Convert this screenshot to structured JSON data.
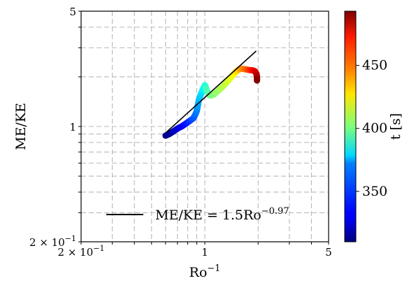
{
  "chart_data": {
    "type": "scatter",
    "xscale": "log",
    "yscale": "log",
    "xlabel": "Ro",
    "xlabel_sup": "−1",
    "ylabel": "ME/KE",
    "xlim": [
      0.2,
      5
    ],
    "ylim": [
      0.2,
      5
    ],
    "grid": true,
    "legend_position": "lower-center",
    "x_ticks": [
      {
        "value": 0.2,
        "label": "2 × 10",
        "sup": "−1"
      },
      {
        "value": 1,
        "label": "1",
        "sup": ""
      },
      {
        "value": 5,
        "label": "5",
        "sup": ""
      }
    ],
    "y_ticks": [
      {
        "value": 0.2,
        "label": "2 × 10",
        "sup": "−1"
      },
      {
        "value": 1,
        "label": "1",
        "sup": ""
      },
      {
        "value": 5,
        "label": "5",
        "sup": ""
      }
    ],
    "fit": {
      "coefficient": 1.5,
      "exponent": -0.97,
      "x_range": [
        0.6,
        1.95
      ],
      "legend_label": "ME/KE = 1.5Ro",
      "legend_sup": "−0.97",
      "color": "#000000"
    },
    "colorbar": {
      "label": "t [s]",
      "range": [
        310,
        493
      ],
      "ticks": [
        350,
        400,
        450
      ],
      "colormap": "jet"
    },
    "points": [
      {
        "x": 0.6,
        "y": 0.88,
        "t": 311
      },
      {
        "x": 0.63,
        "y": 0.9,
        "t": 314
      },
      {
        "x": 0.66,
        "y": 0.93,
        "t": 318
      },
      {
        "x": 0.68,
        "y": 0.95,
        "t": 322
      },
      {
        "x": 0.71,
        "y": 0.98,
        "t": 326
      },
      {
        "x": 0.74,
        "y": 1.0,
        "t": 330
      },
      {
        "x": 0.77,
        "y": 1.03,
        "t": 334
      },
      {
        "x": 0.8,
        "y": 1.06,
        "t": 338
      },
      {
        "x": 0.83,
        "y": 1.09,
        "t": 342
      },
      {
        "x": 0.86,
        "y": 1.12,
        "t": 347
      },
      {
        "x": 0.88,
        "y": 1.17,
        "t": 351
      },
      {
        "x": 0.9,
        "y": 1.24,
        "t": 355
      },
      {
        "x": 0.91,
        "y": 1.32,
        "t": 359
      },
      {
        "x": 0.92,
        "y": 1.4,
        "t": 363
      },
      {
        "x": 0.93,
        "y": 1.48,
        "t": 367
      },
      {
        "x": 0.95,
        "y": 1.57,
        "t": 371
      },
      {
        "x": 0.97,
        "y": 1.66,
        "t": 375
      },
      {
        "x": 0.99,
        "y": 1.74,
        "t": 379
      },
      {
        "x": 1.0,
        "y": 1.78,
        "t": 383
      },
      {
        "x": 1.01,
        "y": 1.74,
        "t": 387
      },
      {
        "x": 1.02,
        "y": 1.67,
        "t": 390
      },
      {
        "x": 1.04,
        "y": 1.6,
        "t": 393
      },
      {
        "x": 1.06,
        "y": 1.55,
        "t": 396
      },
      {
        "x": 1.08,
        "y": 1.54,
        "t": 399
      },
      {
        "x": 1.12,
        "y": 1.56,
        "t": 402
      },
      {
        "x": 1.17,
        "y": 1.62,
        "t": 405
      },
      {
        "x": 1.23,
        "y": 1.7,
        "t": 409
      },
      {
        "x": 1.3,
        "y": 1.8,
        "t": 413
      },
      {
        "x": 1.37,
        "y": 1.92,
        "t": 417
      },
      {
        "x": 1.44,
        "y": 2.05,
        "t": 422
      },
      {
        "x": 1.5,
        "y": 2.15,
        "t": 428
      },
      {
        "x": 1.56,
        "y": 2.22,
        "t": 435
      },
      {
        "x": 1.62,
        "y": 2.24,
        "t": 443
      },
      {
        "x": 1.7,
        "y": 2.22,
        "t": 451
      },
      {
        "x": 1.78,
        "y": 2.2,
        "t": 459
      },
      {
        "x": 1.86,
        "y": 2.19,
        "t": 467
      },
      {
        "x": 1.92,
        "y": 2.16,
        "t": 474
      },
      {
        "x": 1.96,
        "y": 2.08,
        "t": 480
      },
      {
        "x": 1.97,
        "y": 1.98,
        "t": 486
      },
      {
        "x": 1.97,
        "y": 1.9,
        "t": 492
      }
    ]
  }
}
